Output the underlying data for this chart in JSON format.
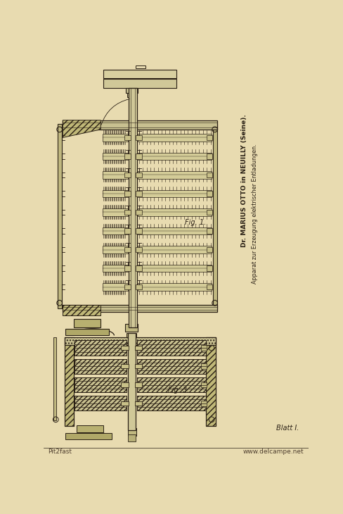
{
  "paper_color": "#e8dbb0",
  "line_color": "#2a2015",
  "dark_fill": "#5a5040",
  "hatch_color": "#3a3025",
  "fig_width": 4.89,
  "fig_height": 7.3,
  "dpi": 100,
  "title_line1": "Dr. MARIUS OTTO in NEUILLY (Seine).",
  "title_line2": "Apparat zur Erzeugung elektrischer Entladungen.",
  "fig1_label": "Fig. 1.",
  "fig3_label": "Fig. 3.",
  "blatt_label": "Blatt I.",
  "watermark_left": "Pit2fast",
  "watermark_right": "www.delcampe.net"
}
